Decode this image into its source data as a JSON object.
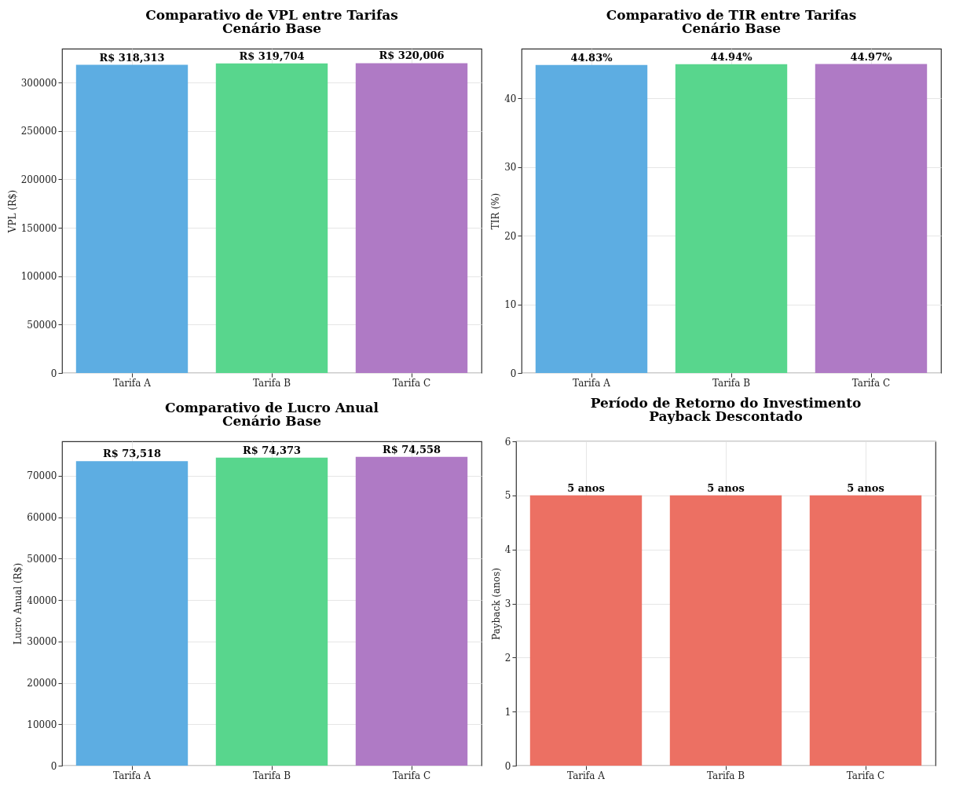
{
  "chart_data": [
    {
      "type": "bar",
      "title": "Comparativo de VPL entre Tarifas",
      "subtitle": "Cenário Base",
      "ylabel": "VPL (R$)",
      "categories": [
        "Tarifa A",
        "Tarifa B",
        "Tarifa C"
      ],
      "values": [
        318313,
        319704,
        320006
      ],
      "colors": [
        "#5dade2",
        "#58d68d",
        "#af7ac5"
      ],
      "value_labels": [
        "R$ 318,313",
        "R$ 319,704",
        "R$ 320,006"
      ],
      "ylim": [
        0,
        335000
      ],
      "yticks": [
        0,
        50000,
        100000,
        150000,
        200000,
        250000,
        300000
      ],
      "grid": true
    },
    {
      "type": "bar",
      "title": "Comparativo de TIR entre Tarifas",
      "subtitle": "Cenário Base",
      "ylabel": "TIR (%)",
      "categories": [
        "Tarifa A",
        "Tarifa B",
        "Tarifa C"
      ],
      "values": [
        44.83,
        44.94,
        44.97
      ],
      "colors": [
        "#5dade2",
        "#58d68d",
        "#af7ac5"
      ],
      "value_labels": [
        "44.83%",
        "44.94%",
        "44.97%"
      ],
      "ylim": [
        0,
        47.2
      ],
      "yticks": [
        0,
        10,
        20,
        30,
        40
      ],
      "grid": true
    },
    {
      "type": "bar",
      "title": "Comparativo de Lucro Anual",
      "subtitle": "Cenário Base",
      "ylabel": "Lucro Anual (R$)",
      "categories": [
        "Tarifa A",
        "Tarifa B",
        "Tarifa C"
      ],
      "values": [
        73518,
        74373,
        74558
      ],
      "colors": [
        "#5dade2",
        "#58d68d",
        "#af7ac5"
      ],
      "value_labels": [
        "R$ 73,518",
        "R$ 74,373",
        "R$ 74,558"
      ],
      "ylim": [
        0,
        78300
      ],
      "yticks": [
        0,
        10000,
        20000,
        30000,
        40000,
        50000,
        60000,
        70000
      ],
      "grid": true
    },
    {
      "type": "bar",
      "title": "Período de Retorno do Investimento",
      "subtitle": "Payback Descontado",
      "ylabel": "Payback (anos)",
      "categories": [
        "Tarifa A",
        "Tarifa B",
        "Tarifa C"
      ],
      "values": [
        5,
        5,
        5
      ],
      "colors": [
        "#ec7063",
        "#ec7063",
        "#ec7063"
      ],
      "value_labels": [
        "5 anos",
        "5 anos",
        "5 anos"
      ],
      "ylim": [
        0,
        6
      ],
      "yticks": [
        0,
        1,
        2,
        3,
        4,
        5,
        6
      ],
      "grid": true
    }
  ]
}
